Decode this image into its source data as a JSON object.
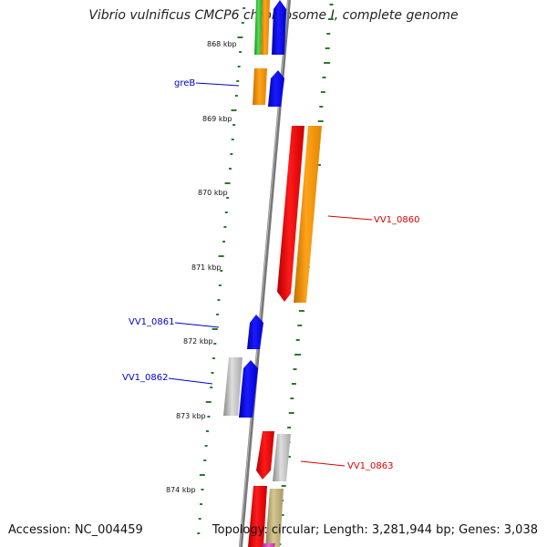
{
  "title": "Vibrio vulnificus CMCP6 chromosome I, complete genome",
  "footer": {
    "accession": "Accession: NC_004459",
    "topology": "Topology: circular; Length: 3,281,944 bp; Genes: 3,038"
  },
  "kbp_labels": [
    "868 kbp",
    "869 kbp",
    "870 kbp",
    "871 kbp",
    "872 kbp",
    "873 kbp",
    "874 kbp"
  ],
  "gene_labels": [
    {
      "text": "greB",
      "color": "#0000cc"
    },
    {
      "text": "VV1_0860",
      "color": "#dd0000"
    },
    {
      "text": "VV1_0861",
      "color": "#0000cc"
    },
    {
      "text": "VV1_0862",
      "color": "#0000cc"
    },
    {
      "text": "VV1_0863",
      "color": "#dd0000"
    }
  ],
  "colors": {
    "backbone": "#888888",
    "gc_ticks": "#2a7a2a",
    "forward_cds": "#0000ff",
    "reverse_cds": "#ff0000",
    "orange": "#ff9900",
    "grey": "#bbbbbb",
    "green": "#33bb33",
    "khaki": "#bbaa77",
    "magenta": "#cc44aa"
  }
}
